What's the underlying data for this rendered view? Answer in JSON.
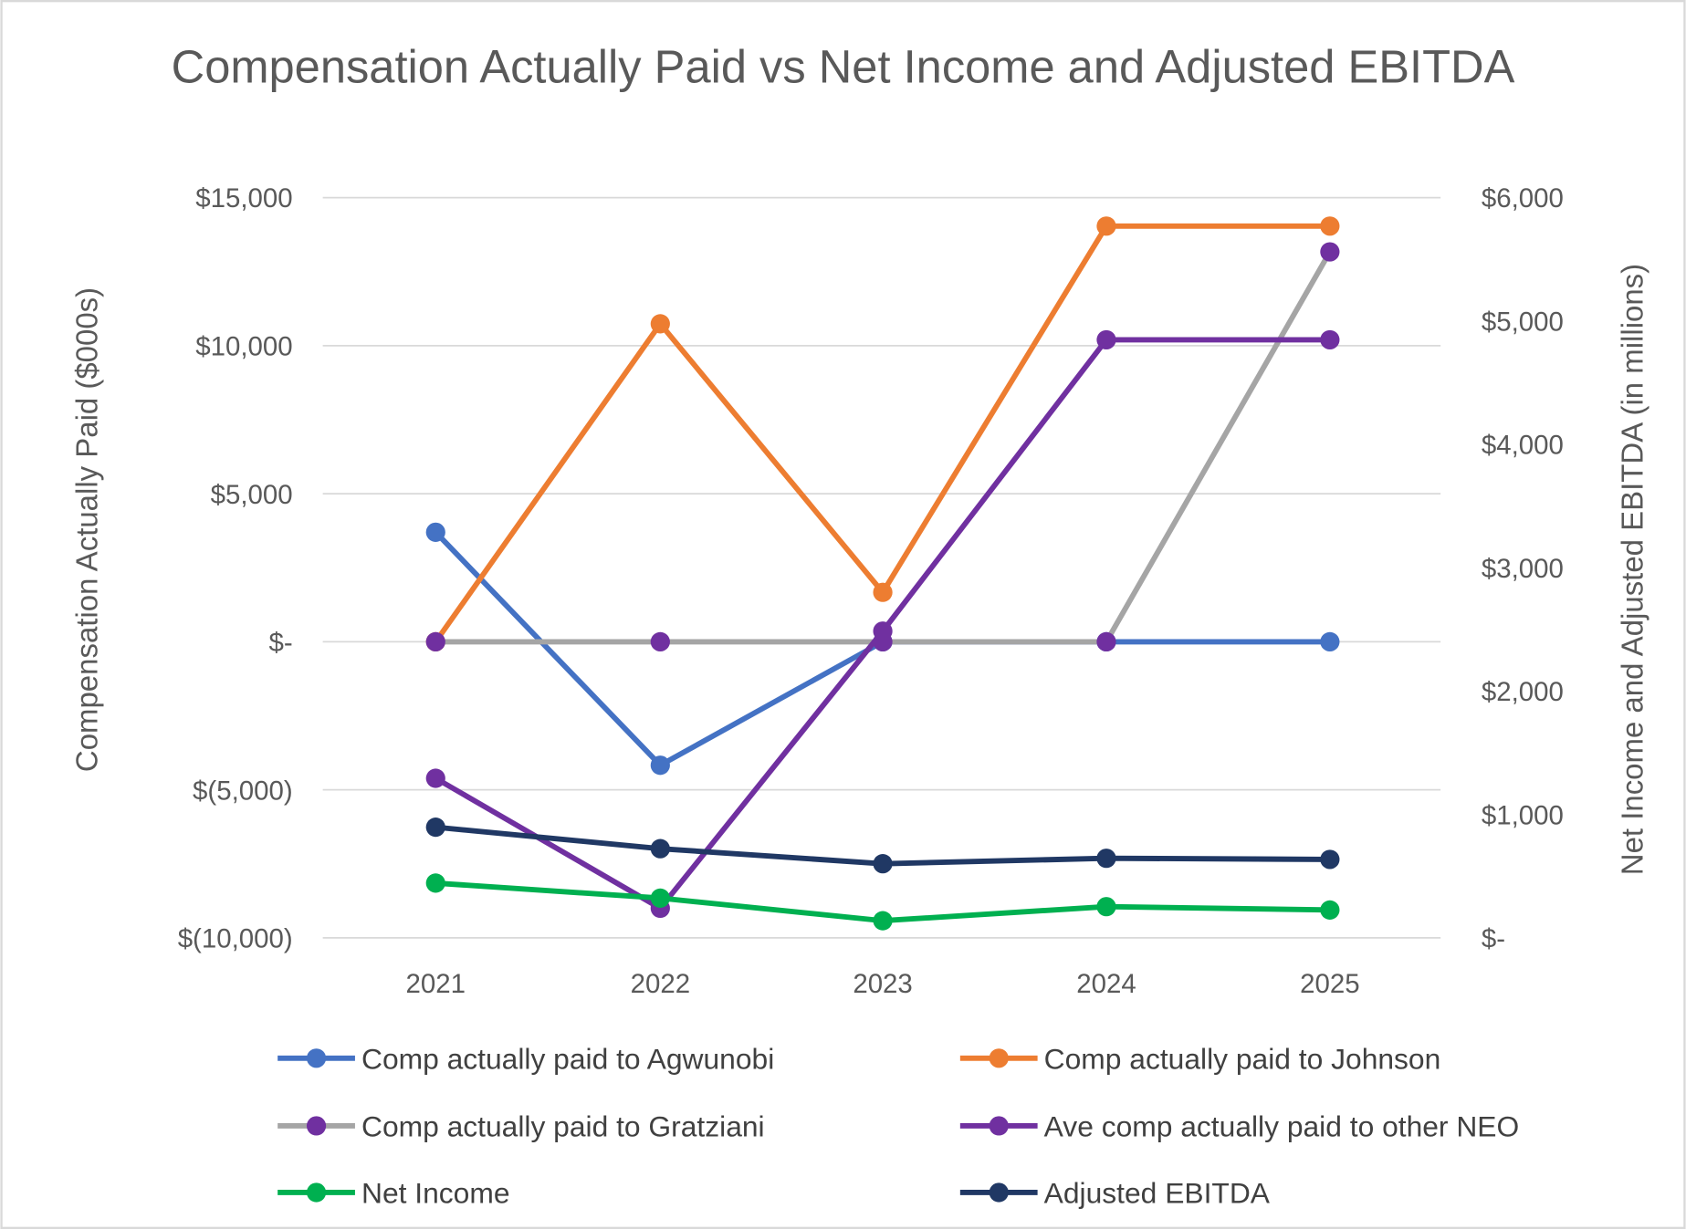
{
  "chart_data": {
    "type": "line",
    "title": "Compensation Actually Paid vs Net Income and Adjusted EBITDA",
    "xlabel": "",
    "ylabel": "Compensation Actually Paid ($000s)",
    "y2label": "Net Income and Adjusted EBITDA (in millions)",
    "ylim": [
      -10000,
      15000
    ],
    "y2lim": [
      0,
      6000
    ],
    "categories": [
      "2021",
      "2022",
      "2023",
      "2024",
      "2025"
    ],
    "y_ticks": [
      {
        "value": 15000,
        "label": "$15,000"
      },
      {
        "value": 10000,
        "label": "$10,000"
      },
      {
        "value": 5000,
        "label": "$5,000"
      },
      {
        "value": 0,
        "label": "$-"
      },
      {
        "value": -5000,
        "label": "$(5,000)"
      },
      {
        "value": -10000,
        "label": "$(10,000)"
      }
    ],
    "y2_ticks": [
      {
        "value": 6000,
        "label": "$6,000"
      },
      {
        "value": 5000,
        "label": "$5,000"
      },
      {
        "value": 4000,
        "label": "$4,000"
      },
      {
        "value": 3000,
        "label": "$3,000"
      },
      {
        "value": 2000,
        "label": "$2,000"
      },
      {
        "value": 1000,
        "label": "$1,000"
      },
      {
        "value": 0,
        "label": "$-"
      }
    ],
    "grid": true,
    "legend_position": "bottom",
    "series": [
      {
        "name": "Comp actually paid to Agwunobi",
        "axis": "left",
        "line_color": "#4472c4",
        "marker_color": "#4472c4",
        "values": [
          3700,
          -4170,
          0,
          0,
          0
        ]
      },
      {
        "name": "Comp actually paid to Johnson",
        "axis": "left",
        "line_color": "#ed7d31",
        "marker_color": "#ed7d31",
        "values": [
          0,
          10740,
          1670,
          14040,
          14040
        ]
      },
      {
        "name": "Comp actually paid to Gratziani",
        "axis": "left",
        "line_color": "#a5a5a5",
        "marker_color": "#7030a0",
        "values": [
          0,
          0,
          0,
          0,
          13170
        ]
      },
      {
        "name": "Ave comp actually paid to other NEO",
        "axis": "left",
        "line_color": "#7030a0",
        "marker_color": "#7030a0",
        "values": [
          -4610,
          -9000,
          360,
          10200,
          10200
        ]
      },
      {
        "name": "Net Income",
        "axis": "right",
        "line_color": "#00b050",
        "marker_color": "#00b050",
        "values": [
          444,
          322,
          139,
          253,
          226
        ]
      },
      {
        "name": "Adjusted EBITDA",
        "axis": "right",
        "line_color": "#203864",
        "marker_color": "#203864",
        "values": [
          897,
          723,
          601,
          645,
          636
        ]
      }
    ]
  }
}
